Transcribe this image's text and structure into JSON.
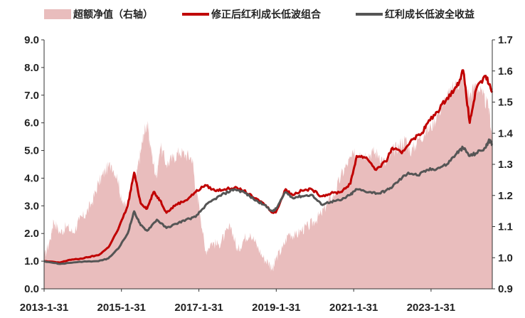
{
  "chart_data": {
    "type": "line",
    "legend_position": "top",
    "grid": false,
    "series": [
      {
        "name": "超额净值（右轴）",
        "kind": "area",
        "axis": "right",
        "color": "#e9bdbd",
        "points": [
          [
            "2013-01-31",
            1.0
          ],
          [
            "2013-03-31",
            1.06
          ],
          [
            "2013-04-30",
            1.12
          ],
          [
            "2013-06-30",
            1.08
          ],
          [
            "2013-08-31",
            1.1
          ],
          [
            "2013-10-31",
            1.08
          ],
          [
            "2013-12-31",
            1.12
          ],
          [
            "2014-02-28",
            1.14
          ],
          [
            "2014-04-30",
            1.18
          ],
          [
            "2014-06-30",
            1.24
          ],
          [
            "2014-08-31",
            1.28
          ],
          [
            "2014-10-31",
            1.3
          ],
          [
            "2014-12-31",
            1.25
          ],
          [
            "2015-01-31",
            1.18
          ],
          [
            "2015-03-31",
            1.16
          ],
          [
            "2015-04-30",
            1.22
          ],
          [
            "2015-05-31",
            1.24
          ],
          [
            "2015-06-30",
            1.28
          ],
          [
            "2015-07-31",
            1.34
          ],
          [
            "2015-08-31",
            1.4
          ],
          [
            "2015-09-30",
            1.43
          ],
          [
            "2015-10-31",
            1.36
          ],
          [
            "2015-11-30",
            1.3
          ],
          [
            "2015-12-31",
            1.26
          ],
          [
            "2016-01-31",
            1.36
          ],
          [
            "2016-03-31",
            1.3
          ],
          [
            "2016-05-31",
            1.32
          ],
          [
            "2016-07-31",
            1.34
          ],
          [
            "2016-09-30",
            1.33
          ],
          [
            "2016-11-30",
            1.32
          ],
          [
            "2016-12-31",
            1.22
          ],
          [
            "2017-01-31",
            1.18
          ],
          [
            "2017-03-31",
            1.02
          ],
          [
            "2017-05-31",
            1.05
          ],
          [
            "2017-07-31",
            1.04
          ],
          [
            "2017-09-30",
            1.07
          ],
          [
            "2017-11-30",
            1.1
          ],
          [
            "2018-01-31",
            1.02
          ],
          [
            "2018-03-31",
            1.06
          ],
          [
            "2018-05-31",
            1.08
          ],
          [
            "2018-07-31",
            1.04
          ],
          [
            "2018-09-30",
            1.0
          ],
          [
            "2018-11-30",
            0.98
          ],
          [
            "2018-12-31",
            0.96
          ],
          [
            "2019-01-31",
            1.0
          ],
          [
            "2019-03-31",
            1.03
          ],
          [
            "2019-05-31",
            1.08
          ],
          [
            "2019-07-31",
            1.07
          ],
          [
            "2019-09-30",
            1.09
          ],
          [
            "2019-11-30",
            1.1
          ],
          [
            "2020-01-31",
            1.12
          ],
          [
            "2020-03-31",
            1.14
          ],
          [
            "2020-05-31",
            1.18
          ],
          [
            "2020-07-31",
            1.2
          ],
          [
            "2020-09-30",
            1.26
          ],
          [
            "2020-11-30",
            1.3
          ],
          [
            "2021-01-31",
            1.33
          ],
          [
            "2021-03-31",
            1.34
          ],
          [
            "2021-05-31",
            1.33
          ],
          [
            "2021-07-31",
            1.34
          ],
          [
            "2021-09-30",
            1.33
          ],
          [
            "2021-11-30",
            1.3
          ],
          [
            "2022-01-31",
            1.34
          ],
          [
            "2022-03-31",
            1.36
          ],
          [
            "2022-05-31",
            1.38
          ],
          [
            "2022-07-31",
            1.34
          ],
          [
            "2022-09-30",
            1.38
          ],
          [
            "2022-11-30",
            1.4
          ],
          [
            "2023-01-31",
            1.42
          ],
          [
            "2023-03-31",
            1.46
          ],
          [
            "2023-05-31",
            1.5
          ],
          [
            "2023-07-31",
            1.53
          ],
          [
            "2023-09-30",
            1.56
          ],
          [
            "2023-11-30",
            1.57
          ],
          [
            "2024-01-31",
            1.52
          ],
          [
            "2024-03-31",
            1.56
          ],
          [
            "2024-05-31",
            1.52
          ],
          [
            "2024-07-31",
            1.48
          ],
          [
            "2024-08-31",
            1.38
          ]
        ]
      },
      {
        "name": "修正后红利成长低波组合",
        "kind": "line",
        "axis": "left",
        "color": "#c00000",
        "points": [
          [
            "2013-01-31",
            1.0
          ],
          [
            "2013-06-30",
            0.95
          ],
          [
            "2013-09-30",
            1.05
          ],
          [
            "2013-12-31",
            1.08
          ],
          [
            "2014-03-31",
            1.15
          ],
          [
            "2014-06-30",
            1.22
          ],
          [
            "2014-09-30",
            1.5
          ],
          [
            "2014-12-31",
            2.15
          ],
          [
            "2015-03-31",
            3.0
          ],
          [
            "2015-05-31",
            4.2
          ],
          [
            "2015-07-31",
            3.1
          ],
          [
            "2015-09-30",
            2.9
          ],
          [
            "2015-11-30",
            3.5
          ],
          [
            "2016-01-31",
            3.2
          ],
          [
            "2016-03-31",
            2.75
          ],
          [
            "2016-06-30",
            3.05
          ],
          [
            "2016-09-30",
            3.2
          ],
          [
            "2016-12-31",
            3.5
          ],
          [
            "2017-03-31",
            3.75
          ],
          [
            "2017-06-30",
            3.55
          ],
          [
            "2017-09-30",
            3.6
          ],
          [
            "2017-12-31",
            3.65
          ],
          [
            "2018-03-31",
            3.55
          ],
          [
            "2018-06-30",
            3.3
          ],
          [
            "2018-09-30",
            3.1
          ],
          [
            "2018-12-31",
            2.75
          ],
          [
            "2019-01-31",
            2.8
          ],
          [
            "2019-04-30",
            3.6
          ],
          [
            "2019-06-30",
            3.4
          ],
          [
            "2019-09-30",
            3.55
          ],
          [
            "2019-12-31",
            3.6
          ],
          [
            "2020-03-31",
            3.35
          ],
          [
            "2020-06-30",
            3.45
          ],
          [
            "2020-09-30",
            3.5
          ],
          [
            "2020-12-31",
            3.8
          ],
          [
            "2021-02-28",
            4.8
          ],
          [
            "2021-05-31",
            4.75
          ],
          [
            "2021-08-31",
            4.3
          ],
          [
            "2021-11-30",
            4.6
          ],
          [
            "2022-01-31",
            5.1
          ],
          [
            "2022-04-30",
            4.9
          ],
          [
            "2022-07-31",
            5.4
          ],
          [
            "2022-10-31",
            5.6
          ],
          [
            "2022-12-31",
            6.0
          ],
          [
            "2023-03-31",
            6.4
          ],
          [
            "2023-06-30",
            6.9
          ],
          [
            "2023-09-30",
            7.3
          ],
          [
            "2023-11-30",
            7.9
          ],
          [
            "2024-01-31",
            6.0
          ],
          [
            "2024-03-31",
            7.2
          ],
          [
            "2024-06-30",
            7.7
          ],
          [
            "2024-08-31",
            7.1
          ]
        ]
      },
      {
        "name": "红利成长低波全收益",
        "kind": "line",
        "axis": "left",
        "color": "#555555",
        "points": [
          [
            "2013-01-31",
            1.0
          ],
          [
            "2013-06-30",
            0.9
          ],
          [
            "2013-12-31",
            0.98
          ],
          [
            "2014-06-30",
            1.0
          ],
          [
            "2014-09-30",
            1.1
          ],
          [
            "2014-12-31",
            1.45
          ],
          [
            "2015-03-31",
            2.0
          ],
          [
            "2015-05-31",
            2.8
          ],
          [
            "2015-07-31",
            2.3
          ],
          [
            "2015-09-30",
            2.1
          ],
          [
            "2015-12-31",
            2.5
          ],
          [
            "2016-03-31",
            2.2
          ],
          [
            "2016-06-30",
            2.35
          ],
          [
            "2016-09-30",
            2.5
          ],
          [
            "2016-12-31",
            2.6
          ],
          [
            "2017-03-31",
            3.0
          ],
          [
            "2017-06-30",
            3.25
          ],
          [
            "2017-09-30",
            3.45
          ],
          [
            "2017-12-31",
            3.6
          ],
          [
            "2018-03-31",
            3.5
          ],
          [
            "2018-06-30",
            3.25
          ],
          [
            "2018-09-30",
            3.05
          ],
          [
            "2018-12-31",
            2.8
          ],
          [
            "2019-01-31",
            2.9
          ],
          [
            "2019-04-30",
            3.5
          ],
          [
            "2019-06-30",
            3.3
          ],
          [
            "2019-09-30",
            3.35
          ],
          [
            "2019-12-31",
            3.4
          ],
          [
            "2020-03-31",
            3.05
          ],
          [
            "2020-06-30",
            3.15
          ],
          [
            "2020-09-30",
            3.2
          ],
          [
            "2020-12-31",
            3.4
          ],
          [
            "2021-02-28",
            3.6
          ],
          [
            "2021-06-30",
            3.5
          ],
          [
            "2021-09-30",
            3.45
          ],
          [
            "2021-12-31",
            3.6
          ],
          [
            "2022-03-31",
            3.9
          ],
          [
            "2022-06-30",
            4.2
          ],
          [
            "2022-09-30",
            4.1
          ],
          [
            "2022-12-31",
            4.3
          ],
          [
            "2023-03-31",
            4.35
          ],
          [
            "2023-06-30",
            4.5
          ],
          [
            "2023-09-30",
            4.9
          ],
          [
            "2023-11-30",
            5.1
          ],
          [
            "2024-01-31",
            4.8
          ],
          [
            "2024-03-31",
            4.9
          ],
          [
            "2024-06-30",
            5.1
          ],
          [
            "2024-07-31",
            5.4
          ],
          [
            "2024-08-31",
            5.2
          ]
        ]
      }
    ],
    "xlim": [
      "2013-01-31",
      "2024-08-31"
    ],
    "x_ticks": [
      "2013-1-31",
      "2015-1-31",
      "2017-1-31",
      "2019-1-31",
      "2021-1-31",
      "2023-1-31"
    ],
    "left_axis": {
      "ylim": [
        0,
        9
      ],
      "ticks": [
        "0.0",
        "1.0",
        "2.0",
        "3.0",
        "4.0",
        "5.0",
        "6.0",
        "7.0",
        "8.0",
        "9.0"
      ]
    },
    "right_axis": {
      "ylim": [
        0.9,
        1.7
      ],
      "ticks": [
        "0.9",
        "1.0",
        "1.1",
        "1.2",
        "1.3",
        "1.4",
        "1.5",
        "1.6",
        "1.7"
      ]
    }
  }
}
